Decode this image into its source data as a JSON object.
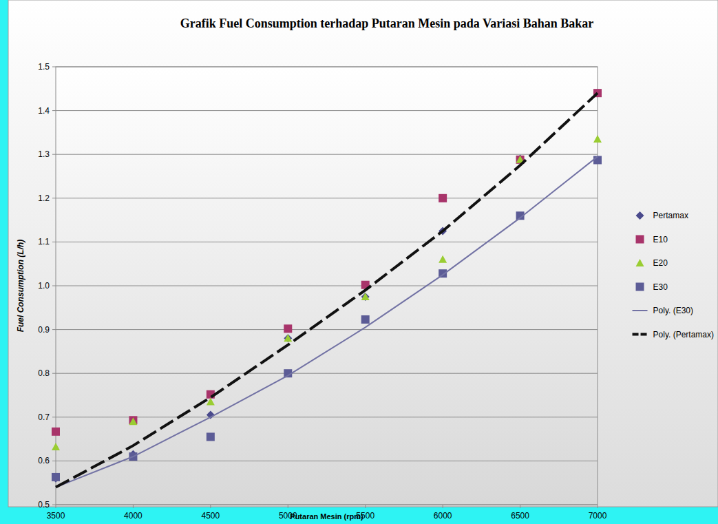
{
  "chart_data": {
    "type": "scatter",
    "title": "Grafik Fuel Consumption terhadap Putaran Mesin pada Variasi Bahan Bakar",
    "x_label": "Putaran Mesin (rpm)",
    "y_label": "Fuel Consumption (L/h)",
    "x": [
      3500,
      4000,
      4500,
      5000,
      5500,
      6000,
      6500,
      7000
    ],
    "xlim": [
      3500,
      7000
    ],
    "xticks": [
      3500,
      4000,
      4500,
      5000,
      5500,
      6000,
      6500,
      7000
    ],
    "ylim": [
      0.5,
      1.5
    ],
    "yticks": [
      0.5,
      0.6,
      0.7,
      0.8,
      0.9,
      {
        "value": 1,
        "label": "1.0"
      },
      1.1,
      1.2,
      1.3,
      1.4,
      1.5
    ],
    "grid": true,
    "legend": "right",
    "series": [
      {
        "name": "Pertamax",
        "type": "scatter",
        "marker": "diamond",
        "color": "#4a4a8c",
        "values": [
          0.56,
          0.615,
          0.705,
          0.88,
          0.975,
          1.125,
          1.29,
          1.44
        ]
      },
      {
        "name": "E10",
        "type": "scatter",
        "marker": "square",
        "color": "#a8346a",
        "values": [
          0.667,
          0.693,
          0.752,
          0.902,
          1.002,
          1.2,
          1.288,
          1.44
        ]
      },
      {
        "name": "E20",
        "type": "scatter",
        "marker": "triangle",
        "color": "#9acd32",
        "values": [
          0.632,
          0.69,
          0.735,
          0.88,
          0.975,
          1.06,
          1.288,
          1.335
        ]
      },
      {
        "name": "E30",
        "type": "scatter",
        "marker": "square",
        "color": "#5c5c96",
        "values": [
          0.563,
          0.61,
          0.655,
          0.8,
          0.923,
          1.028,
          1.16,
          1.287
        ]
      },
      {
        "name": "Poly. (E30)",
        "type": "line",
        "line_style": "solid",
        "color": "#7272a4",
        "values": [
          0.54,
          0.61,
          0.7,
          0.795,
          0.905,
          1.025,
          1.155,
          1.295
        ]
      },
      {
        "name": "Poly. (Pertamax)",
        "type": "line",
        "line_style": "dashed",
        "color": "#111111",
        "values": [
          0.54,
          0.635,
          0.745,
          0.865,
          0.99,
          1.125,
          1.275,
          1.44
        ]
      }
    ]
  }
}
